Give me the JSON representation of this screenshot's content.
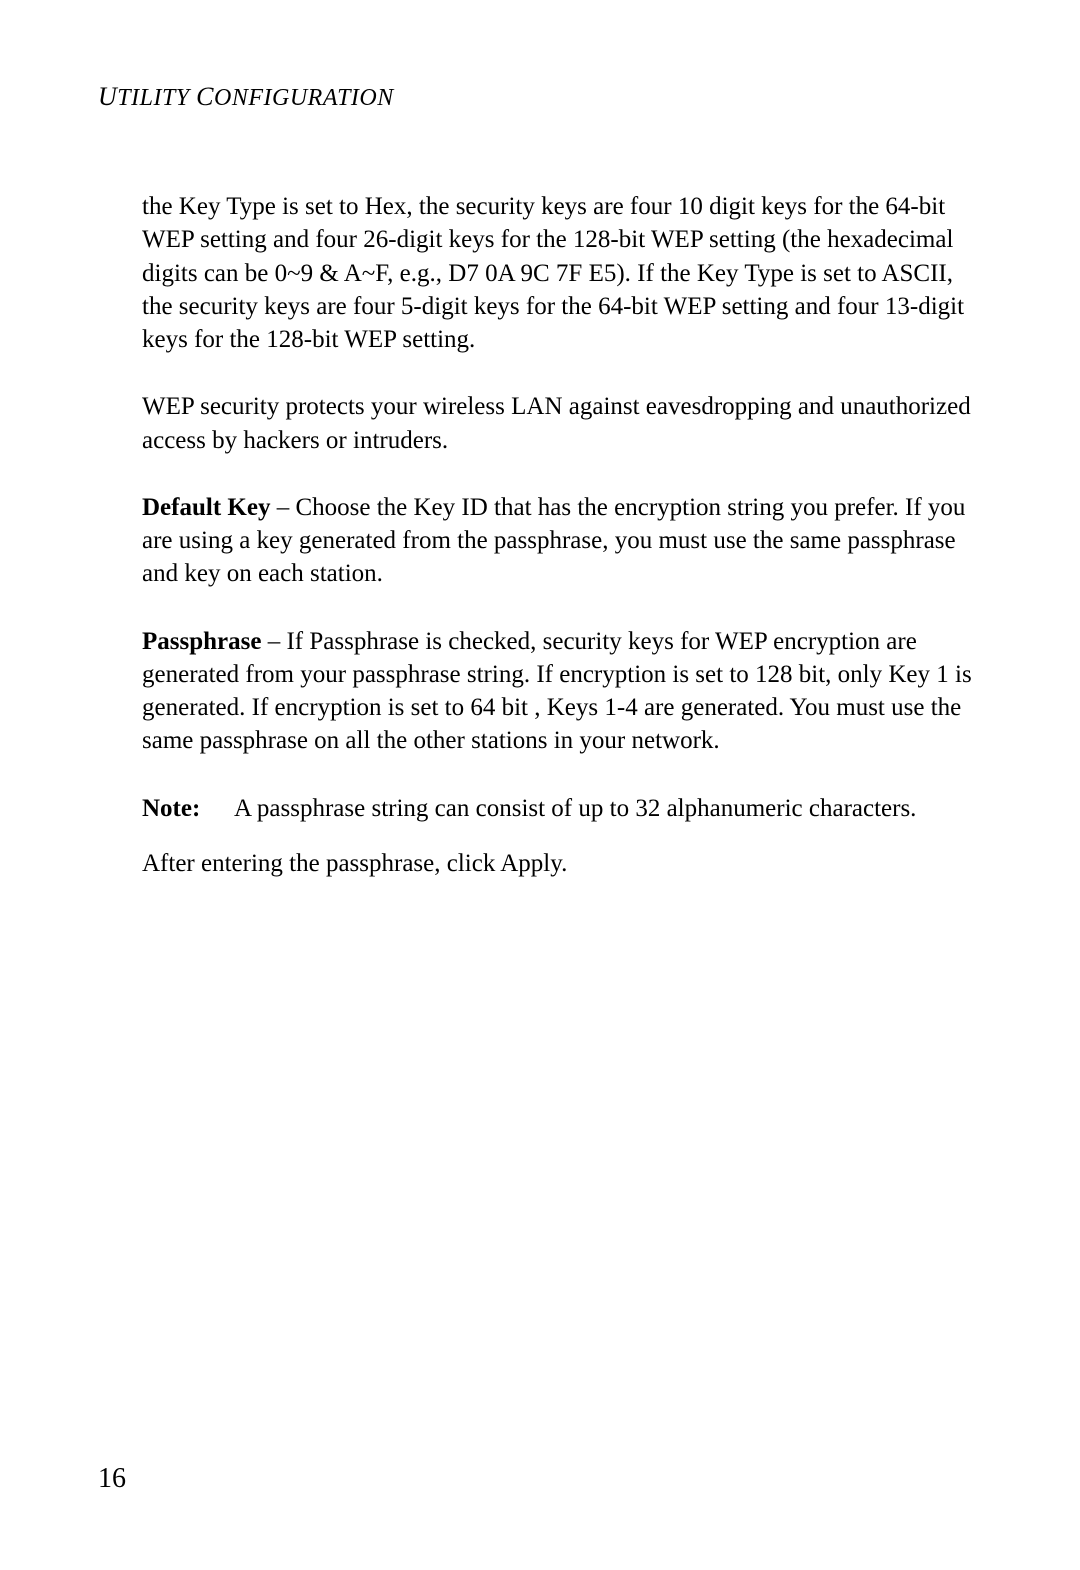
{
  "header": {
    "text_caps_1": "U",
    "text_small_1": "TILITY ",
    "text_caps_2": "C",
    "text_small_2": "ONFIGURATION"
  },
  "paragraphs": {
    "p1": "the Key Type is set to Hex, the security keys are four 10 digit keys for the 64-bit WEP setting and four 26-digit keys for the 128-bit WEP setting (the hexadecimal digits can be 0~9 & A~F, e.g., D7 0A 9C 7F E5). If the Key Type is set to ASCII, the security keys are four 5-digit keys for the 64-bit WEP setting and four 13-digit keys for the 128-bit WEP setting.",
    "p2": "WEP security protects your wireless LAN against eavesdropping and unauthorized access by hackers or intruders.",
    "p3_bold": "Default Key",
    "p3_rest": " – Choose the Key ID that has the encryption string you prefer. If you are using a key generated from the passphrase, you must use the same passphrase and key on each station.",
    "p4_bold": "Passphrase",
    "p4_rest": " – If Passphrase is checked, security keys for WEP encryption are generated from your passphrase string. If encryption is set to 128 bit, only Key 1 is generated. If encryption is set to 64 bit , Keys 1-4 are generated. You must use the same passphrase on all the other stations in your network.",
    "note_label": "Note:",
    "note_text": "A passphrase string can consist of up to 32 alphanumeric characters.",
    "p5": "After entering the passphrase, click Apply."
  },
  "page_number": "16"
}
